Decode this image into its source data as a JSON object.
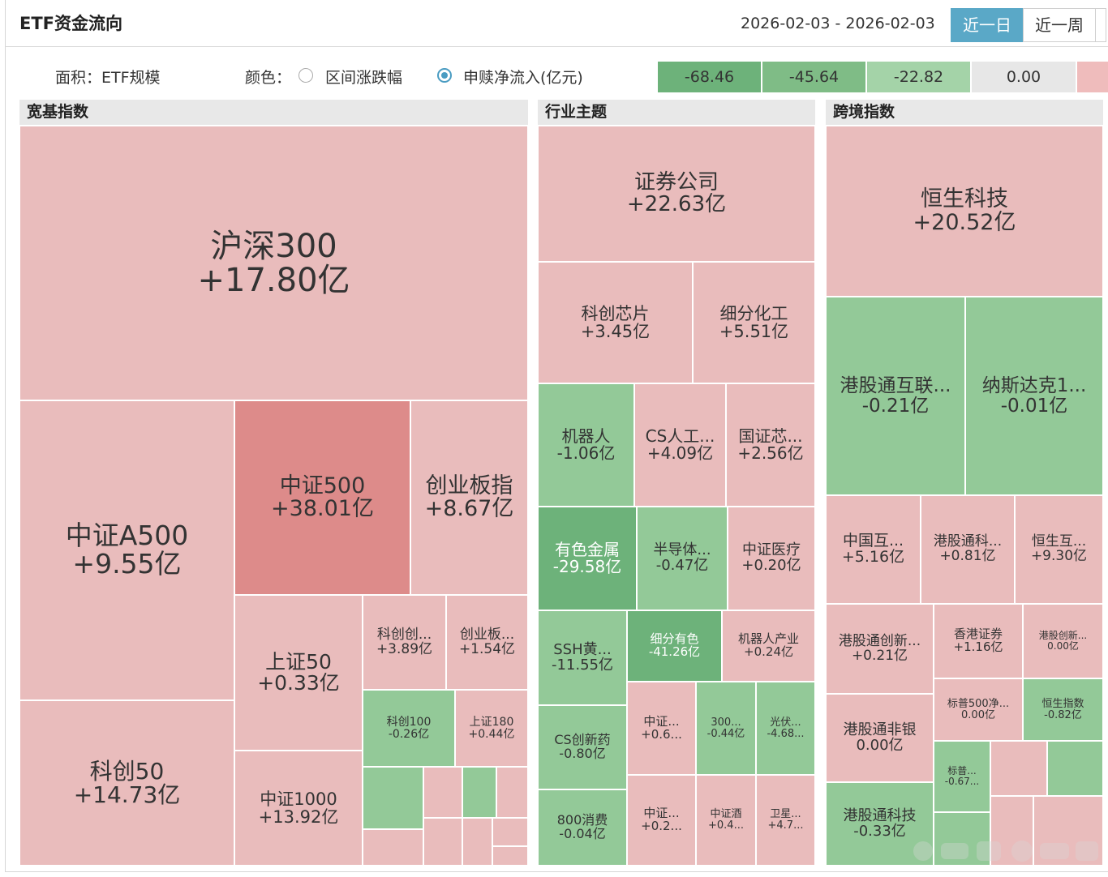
{
  "title": "ETF资金流向",
  "date_range": "2026-02-03 - 2026-02-03",
  "period_tabs": [
    "近一日",
    "近一周",
    ""
  ],
  "controls": {
    "area_label": "面积：ETF规模",
    "color_label": "颜色：",
    "option1": "区间涨跌幅",
    "option2": "申赎净流入(亿元)",
    "selected": "申赎净流入(亿元)"
  },
  "legend": [
    "-68.46",
    "-45.64",
    "-22.82",
    "0.00",
    ""
  ],
  "colors": {
    "pink": "#e9bcbc",
    "red": "#dd8b8a",
    "green_light": "#93c998",
    "green_dark": "#6db27a",
    "accent": "#5aa8c7"
  },
  "sections": [
    "宽基指数",
    "行业主题",
    "跨境指数"
  ],
  "tiles": {
    "hs300": {
      "name": "沪深300",
      "value": "+17.80亿"
    },
    "a500": {
      "name": "中证A500",
      "value": "+9.55亿"
    },
    "zz500": {
      "name": "中证500",
      "value": "+38.01亿"
    },
    "cyb": {
      "name": "创业板指",
      "value": "+8.67亿"
    },
    "kc50": {
      "name": "科创50",
      "value": "+14.73亿"
    },
    "sz50": {
      "name": "上证50",
      "value": "+0.33亿"
    },
    "kcc": {
      "name": "科创创...",
      "value": "+3.89亿"
    },
    "cybb": {
      "name": "创业板...",
      "value": "+1.54亿"
    },
    "zz1000": {
      "name": "中证1000",
      "value": "+13.92亿"
    },
    "kc100": {
      "name": "科创100",
      "value": "-0.26亿"
    },
    "sz180": {
      "name": "上证180",
      "value": "+0.44亿"
    },
    "zqgs": {
      "name": "证券公司",
      "value": "+22.63亿"
    },
    "kcxp": {
      "name": "科创芯片",
      "value": "+3.45亿"
    },
    "xfhg": {
      "name": "细分化工",
      "value": "+5.51亿"
    },
    "jqr": {
      "name": "机器人",
      "value": "-1.06亿"
    },
    "csrg": {
      "name": "CS人工...",
      "value": "+4.09亿"
    },
    "gzx": {
      "name": "国证芯...",
      "value": "+2.56亿"
    },
    "ysjs": {
      "name": "有色金属",
      "value": "-29.58亿"
    },
    "bdt": {
      "name": "半导体...",
      "value": "-0.47亿"
    },
    "zzyl": {
      "name": "中证医疗",
      "value": "+0.20亿"
    },
    "sshh": {
      "name": "SSH黄...",
      "value": "-11.55亿"
    },
    "xfys": {
      "name": "细分有色",
      "value": "-41.26亿"
    },
    "jqrcy": {
      "name": "机器人产业",
      "value": "+0.24亿"
    },
    "cscxy": {
      "name": "CS创新药",
      "value": "-0.80亿"
    },
    "zz_a": {
      "name": "中证...",
      "value": "+0.6..."
    },
    "i300": {
      "name": "300...",
      "value": "-0.44亿"
    },
    "gf": {
      "name": "光伏...",
      "value": "-4.68..."
    },
    "xf800": {
      "name": "800消费",
      "value": "-0.04亿"
    },
    "zz_b": {
      "name": "中证...",
      "value": "+0.2..."
    },
    "zzj": {
      "name": "中证酒",
      "value": "+0.4..."
    },
    "wx": {
      "name": "卫星...",
      "value": "+4.7..."
    },
    "hskj": {
      "name": "恒生科技",
      "value": "+20.52亿"
    },
    "ggthl": {
      "name": "港股通互联...",
      "value": "-0.21亿"
    },
    "nsdk": {
      "name": "纳斯达克1...",
      "value": "-0.01亿"
    },
    "zghl": {
      "name": "中国互...",
      "value": "+5.16亿"
    },
    "ggtk": {
      "name": "港股通科...",
      "value": "+0.81亿"
    },
    "hsh": {
      "name": "恒生互...",
      "value": "+9.30亿"
    },
    "ggtcx": {
      "name": "港股通创新...",
      "value": "+0.21亿"
    },
    "xgzq": {
      "name": "香港证券",
      "value": "+1.16亿"
    },
    "ggcx": {
      "name": "港股创新...",
      "value": "0.00亿"
    },
    "bp500": {
      "name": "标普500净...",
      "value": "0.00亿"
    },
    "hszs": {
      "name": "恒生指数",
      "value": "-0.82亿"
    },
    "ggtfy": {
      "name": "港股通非银",
      "value": "0.00亿"
    },
    "bp": {
      "name": "标普...",
      "value": "-0.67..."
    },
    "ggtkj": {
      "name": "港股通科技",
      "value": "-0.33亿"
    }
  }
}
